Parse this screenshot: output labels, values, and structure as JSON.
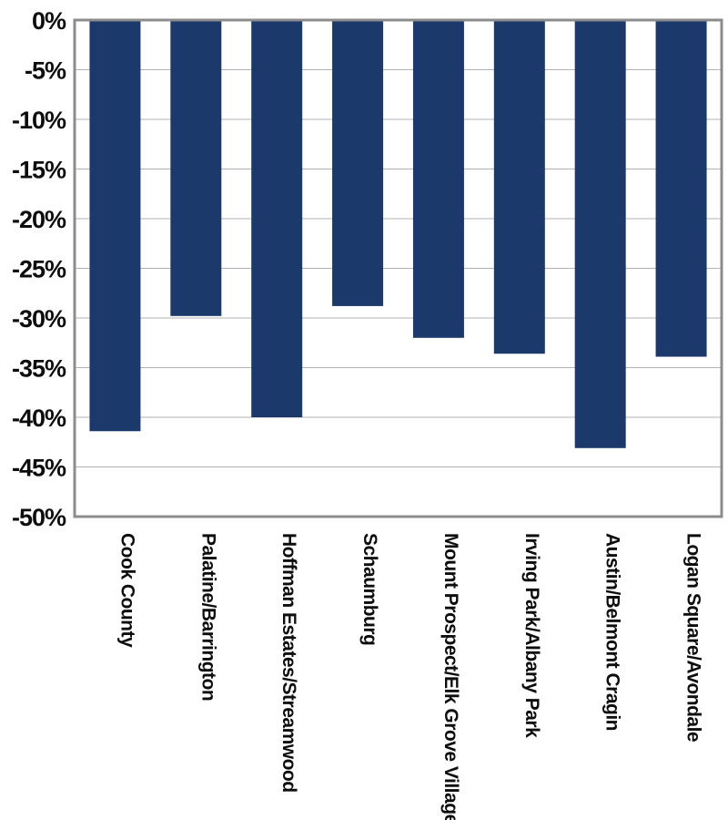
{
  "chart_data": {
    "type": "bar",
    "title": "",
    "xlabel": "",
    "ylabel": "",
    "ylim": [
      -50,
      0
    ],
    "y_ticks": [
      0,
      -5,
      -10,
      -15,
      -20,
      -25,
      -30,
      -35,
      -40,
      -45,
      -50
    ],
    "y_tick_labels": [
      "0%",
      "-5%",
      "-10%",
      "-15%",
      "-20%",
      "-25%",
      "-30%",
      "-35%",
      "-40%",
      "-45%",
      "-50%"
    ],
    "grid": true,
    "legend": "none",
    "bar_color": "#1b3a6b",
    "grid_color": "#b3b3b3",
    "frame_color": "#8c8c8c",
    "categories": [
      "Cook County",
      "Palatine/Barrington",
      "Hoffman Estates/Streamwood",
      "Schaumburg",
      "Mount Prospect/Elk Grove Village",
      "Irving Park/Albany Park",
      "Austin/Belmont Cragin",
      "Logan Square/Avondale"
    ],
    "values": [
      -41.4,
      -29.8,
      -40.0,
      -28.8,
      -32.0,
      -33.6,
      -43.1,
      -33.9
    ]
  }
}
